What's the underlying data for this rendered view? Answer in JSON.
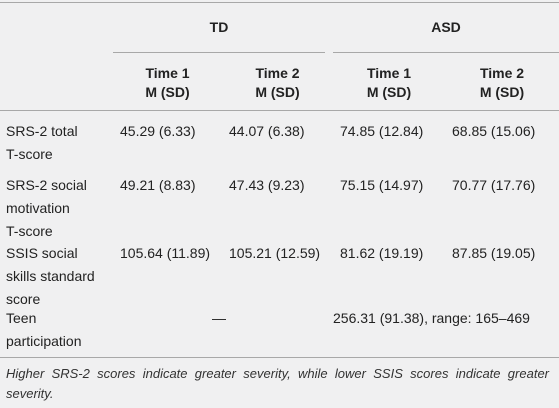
{
  "table": {
    "groups": [
      "TD",
      "ASD"
    ],
    "columns": [
      {
        "time": "Time 1",
        "stat": "M (SD)"
      },
      {
        "time": "Time 2",
        "stat": "M (SD)"
      },
      {
        "time": "Time 1",
        "stat": "M (SD)"
      },
      {
        "time": "Time 2",
        "stat": "M (SD)"
      }
    ],
    "rows": [
      {
        "label": [
          "SRS-2 total",
          "T-score"
        ],
        "cells": [
          "45.29 (6.33)",
          "44.07 (6.38)",
          "74.85 (12.84)",
          "68.85 (15.06)"
        ]
      },
      {
        "label": [
          "SRS-2 social",
          "motivation",
          "T-score"
        ],
        "cells": [
          "49.21 (8.83)",
          "47.43 (9.23)",
          "75.15 (14.97)",
          "70.77 (17.76)"
        ]
      },
      {
        "label": [
          "SSIS social",
          "skills standard",
          "score"
        ],
        "cells": [
          "105.64 (11.89)",
          "105.21 (12.59)",
          "81.62 (19.19)",
          "87.85 (19.05)"
        ]
      },
      {
        "label": [
          "Teen",
          "participation"
        ],
        "spans": [
          "—",
          "256.31 (91.38), range: 165–469"
        ]
      }
    ],
    "footnote": "Higher SRS-2 scores indicate greater severity, while lower SSIS scores indicate greater severity."
  }
}
